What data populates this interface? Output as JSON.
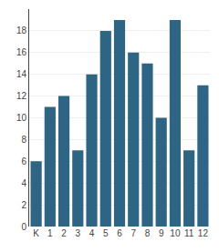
{
  "chart_data": {
    "type": "bar",
    "categories": [
      "K",
      "1",
      "2",
      "3",
      "4",
      "5",
      "6",
      "7",
      "8",
      "9",
      "10",
      "11",
      "12"
    ],
    "values": [
      6,
      11,
      12,
      7,
      14,
      18,
      19,
      16,
      15,
      10,
      19,
      7,
      13
    ],
    "color": "#2e6484",
    "ylim": [
      0,
      20
    ],
    "yticks": [
      0,
      2,
      4,
      6,
      8,
      10,
      12,
      14,
      16,
      18
    ],
    "grid": true
  }
}
